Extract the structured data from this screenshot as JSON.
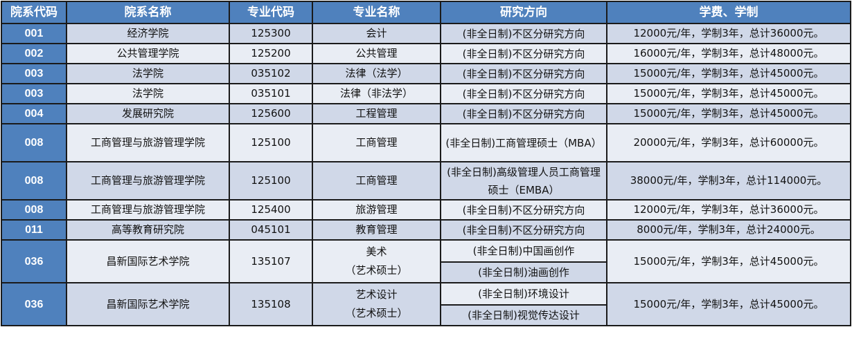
{
  "headers": [
    "院系代码",
    "院系名称",
    "专业代码",
    "专业名称",
    "研究方向",
    "学费、学制"
  ],
  "colors": {
    "header": "#4f81bd",
    "row_dark": "#d0d8e8",
    "row_light": "#e9edf4",
    "border": "#1a1a1a"
  },
  "rows": [
    {
      "code": "001",
      "school": "经济学院",
      "major_code": "125300",
      "major": [
        "会计"
      ],
      "directions": [
        "(非全日制)不区分研究方向"
      ],
      "fee": "12000元/年，学制3年，总计36000元。"
    },
    {
      "code": "002",
      "school": "公共管理学院",
      "major_code": "125200",
      "major": [
        "公共管理"
      ],
      "directions": [
        "(非全日制)不区分研究方向"
      ],
      "fee": "16000元/年，学制3年，总计48000元。"
    },
    {
      "code": "003",
      "school": "法学院",
      "major_code": "035102",
      "major": [
        "法律（法学）"
      ],
      "directions": [
        "(非全日制)不区分研究方向"
      ],
      "fee": "15000元/年，学制3年，总计45000元。"
    },
    {
      "code": "003",
      "school": "法学院",
      "major_code": "035101",
      "major": [
        "法律（非法学）"
      ],
      "directions": [
        "(非全日制)不区分研究方向"
      ],
      "fee": "15000元/年，学制3年，总计45000元。"
    },
    {
      "code": "004",
      "school": "发展研究院",
      "major_code": "125600",
      "major": [
        "工程管理"
      ],
      "directions": [
        "(非全日制)不区分研究方向"
      ],
      "fee": "15000元/年，学制3年，总计45000元。"
    },
    {
      "code": "008",
      "school": "工商管理与旅游管理学院",
      "major_code": "125100",
      "major": [
        "工商管理"
      ],
      "directions": [
        "(非全日制)工商管理硕士（MBA）"
      ],
      "fee": "20000元/年，学制3年，总计60000元。"
    },
    {
      "code": "008",
      "school": "工商管理与旅游管理学院",
      "major_code": "125100",
      "major": [
        "工商管理"
      ],
      "directions": [
        "(非全日制)高级管理人员工商管理硕士（EMBA）"
      ],
      "fee": "38000元/年，学制3年，总计114000元。"
    },
    {
      "code": "008",
      "school": "工商管理与旅游管理学院",
      "major_code": "125400",
      "major": [
        "旅游管理"
      ],
      "directions": [
        "(非全日制)不区分研究方向"
      ],
      "fee": "12000元/年，学制3年，总计36000元。"
    },
    {
      "code": "011",
      "school": "高等教育研究院",
      "major_code": "045101",
      "major": [
        "教育管理"
      ],
      "directions": [
        "(非全日制)不区分研究方向"
      ],
      "fee": "8000元/年，学制3年，总计24000元。"
    },
    {
      "code": "036",
      "school": "昌新国际艺术学院",
      "major_code": "135107",
      "major": [
        "美术",
        "（艺术硕士）"
      ],
      "directions": [
        "(非全日制)中国画创作",
        "(非全日制)油画创作"
      ],
      "fee": "15000元/年，学制3年，总计45000元。"
    },
    {
      "code": "036",
      "school": "昌新国际艺术学院",
      "major_code": "135108",
      "major": [
        "艺术设计",
        "（艺术硕士）"
      ],
      "directions": [
        "(非全日制)环境设计",
        "(非全日制)视觉传达设计"
      ],
      "fee": "15000元/年，学制3年，总计45000元。"
    }
  ]
}
